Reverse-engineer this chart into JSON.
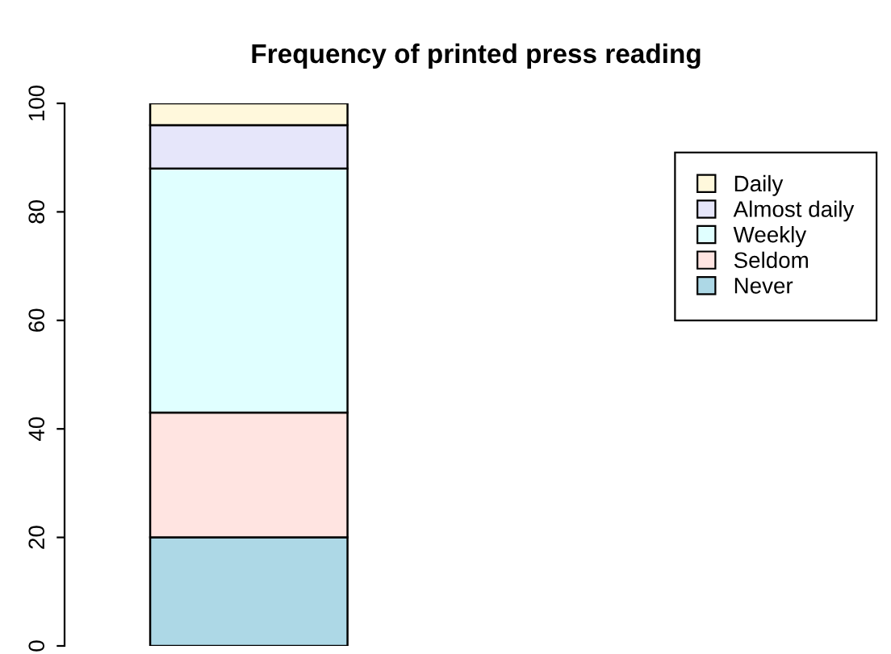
{
  "chart_data": {
    "type": "bar",
    "title": "Frequency of printed press reading",
    "categories": [
      null
    ],
    "stacked": true,
    "series": [
      {
        "name": "Never",
        "color": "#add8e6",
        "values": [
          20
        ]
      },
      {
        "name": "Seldom",
        "color": "#ffe4e1",
        "values": [
          23
        ]
      },
      {
        "name": "Weekly",
        "color": "#e0ffff",
        "values": [
          45
        ]
      },
      {
        "name": "Almost daily",
        "color": "#e6e6fa",
        "values": [
          8
        ]
      },
      {
        "name": "Daily",
        "color": "#fff8dc",
        "values": [
          4
        ]
      }
    ],
    "ylim": [
      0,
      100
    ],
    "yticks": [
      0,
      20,
      40,
      60,
      80,
      100
    ],
    "grid": false,
    "legend": "top right"
  }
}
